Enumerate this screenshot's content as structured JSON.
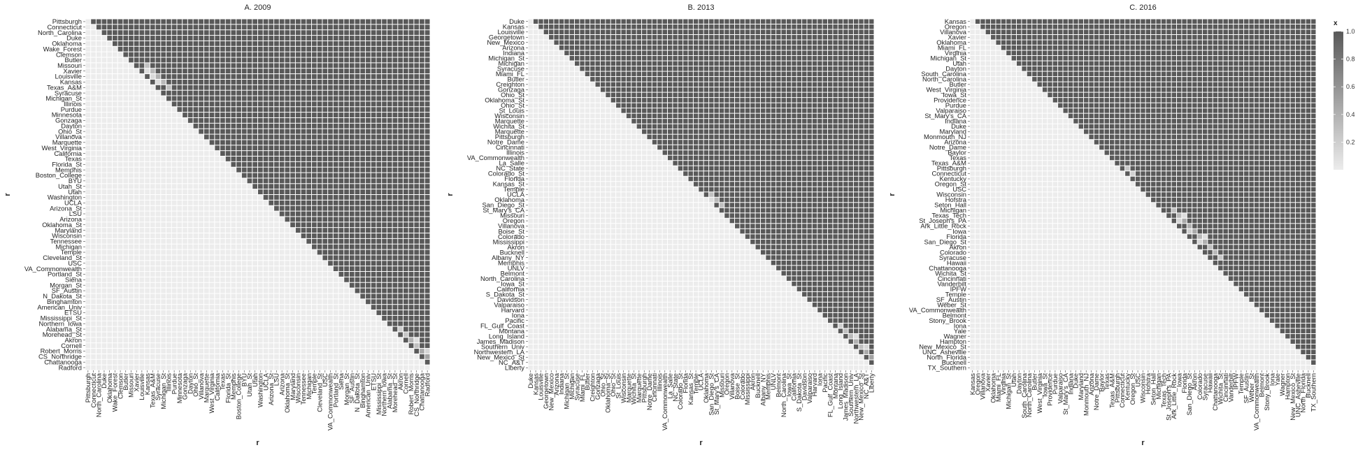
{
  "chart_data": [
    {
      "type": "heatmap",
      "title": "A. 2009",
      "xlabel": "r",
      "ylabel": "r",
      "categories": [
        "Pittsburgh",
        "Connecticut",
        "North_Carolina",
        "Duke",
        "Oklahoma",
        "Wake_Forest",
        "Clemson",
        "Butler",
        "Missouri",
        "Xavier",
        "Louisville",
        "Kansas",
        "Texas_A&M",
        "Syracuse",
        "Michigan_St",
        "Illinois",
        "Purdue",
        "Minnesota",
        "Gonzaga",
        "Dayton",
        "Ohio_St",
        "Villanova",
        "Marquette",
        "West_Virginia",
        "California",
        "Texas",
        "Florida_St",
        "Memphis",
        "Boston_College",
        "BYU",
        "Utah_St",
        "Utah",
        "Washington",
        "UCLA",
        "Arizona_St",
        "LSU",
        "Arizona",
        "Oklahoma_St",
        "Maryland",
        "Wisconsin",
        "Tennessee",
        "Michigan",
        "Temple",
        "Cleveland_St",
        "USC",
        "VA_Commonwealth",
        "Portland_St",
        "Siena",
        "Morgan_St",
        "SF_Austin",
        "N_Dakota_St",
        "Binghamton",
        "American_Univ",
        "ETSU",
        "Mississippi_St",
        "Northern_Iowa",
        "Alabama_St",
        "Morehead_St",
        "Akron",
        "Cornell",
        "Robert_Morris",
        "CS_Northridge",
        "Chattanooga",
        "Radford"
      ],
      "values_note": "lower triangle ~0, upper triangle ~1",
      "mid": [
        [
          8,
          11,
          0.3
        ],
        [
          9,
          12,
          0.35
        ],
        [
          10,
          13,
          0.4
        ],
        [
          11,
          14,
          0.35
        ],
        [
          12,
          15,
          0.3
        ],
        [
          9,
          11,
          0.1
        ],
        [
          10,
          12,
          0.12
        ],
        [
          11,
          13,
          0.1
        ],
        [
          56,
          58,
          0.2
        ],
        [
          57,
          59,
          0.25
        ],
        [
          58,
          60,
          0.4
        ],
        [
          59,
          61,
          0.3
        ],
        [
          60,
          62,
          0.45
        ],
        [
          61,
          63,
          0.5
        ],
        [
          58,
          61,
          0.1
        ],
        [
          60,
          63,
          0.15
        ]
      ]
    },
    {
      "type": "heatmap",
      "title": "B. 2013",
      "xlabel": "r",
      "ylabel": "r",
      "categories": [
        "Duke",
        "Kansas",
        "Louisville",
        "Georgetown",
        "New_Mexico",
        "Arizona",
        "Indiana",
        "Michigan_St",
        "Michigan",
        "Syracuse",
        "Miami_FL",
        "Butler",
        "Creighton",
        "Gonzaga",
        "Ohio_St",
        "Oklahoma_St",
        "Ohio_St",
        "St_Louis",
        "Wisconsin",
        "Marquette",
        "Wichita_St",
        "Marquette",
        "Pittsburgh",
        "Notre_Dame",
        "Cincinnati",
        "Illinois",
        "VA_Commonwealth",
        "La_Salle",
        "NC_State",
        "Colorado_St",
        "Florida",
        "Kansas_St",
        "Temple",
        "UCLA",
        "Oklahoma",
        "San_Diego_St",
        "St_Mary's_CA",
        "Missouri",
        "Oregon",
        "Villanova",
        "Boise_St",
        "Colorado",
        "Mississippi",
        "Akron",
        "Bucknell",
        "Albany_NY",
        "Memphis",
        "UNLV",
        "Belmont",
        "North_Carolina",
        "Iowa_St",
        "California",
        "S_Dakota_St",
        "Davidson",
        "Valparaiso",
        "Harvard",
        "Iona",
        "Pacific",
        "FL_Gulf_Coast",
        "Montana",
        "Long_Island",
        "James_Madison",
        "Southern_Univ",
        "Northwestern_LA",
        "New_Mexico_St",
        "NC_A&T",
        "Liberty"
      ],
      "values_note": "lower triangle ~0, upper triangle ~1",
      "mid": [
        [
          33,
          35,
          0.3
        ],
        [
          34,
          36,
          0.35
        ],
        [
          35,
          37,
          0.3
        ],
        [
          34,
          35,
          0.1
        ],
        [
          58,
          60,
          0.2
        ],
        [
          59,
          61,
          0.3
        ],
        [
          60,
          62,
          0.35
        ],
        [
          61,
          63,
          0.4
        ],
        [
          62,
          64,
          0.3
        ],
        [
          63,
          65,
          0.45
        ],
        [
          64,
          66,
          0.5
        ],
        [
          60,
          63,
          0.1
        ],
        [
          62,
          65,
          0.15
        ]
      ]
    },
    {
      "type": "heatmap",
      "title": "C. 2016",
      "xlabel": "r",
      "ylabel": "r",
      "categories": [
        "Kansas",
        "Oregon",
        "Villanova",
        "Xavier",
        "Oklahoma",
        "Miami_FL",
        "Virginia",
        "Michigan_St",
        "Utah",
        "Dayton",
        "South_Carolina",
        "North_Carolina",
        "Butler",
        "West_Virginia",
        "Iowa_St",
        "Providence",
        "Purdue",
        "Valparaiso",
        "St_Mary's_CA",
        "Indiana",
        "Duke",
        "Maryland",
        "Monmouth_NJ",
        "Arizona",
        "Notre_Dame",
        "Baylor",
        "Texas",
        "Texas_A&M",
        "Pittsburgh",
        "Connecticut",
        "Kentucky",
        "Oregon_St",
        "USC",
        "Wisconsin",
        "Hofstra",
        "Seton_Hall",
        "Michigan",
        "Texas_Tech",
        "St_Joseph's_PA",
        "Ark_Little_Rock",
        "Iowa",
        "Florida",
        "San_Diego_St",
        "Akron",
        "Colorado",
        "Syracuse",
        "Hawaii",
        "Chattanooga",
        "Wichita_St",
        "Cincinnati",
        "Vanderbilt",
        "IPFW",
        "Temple",
        "SF_Austin",
        "Weber_St",
        "VA_Commonwealth",
        "Belmont",
        "Stony_Brook",
        "Iona",
        "Yale",
        "Wagner",
        "Hampton",
        "New_Mexico_St",
        "UNC_Asheville",
        "North_Florida",
        "Bucknell",
        "TX_Southern"
      ],
      "values_note": "lower triangle ~0, upper triangle ~1",
      "mid": [
        [
          28,
          30,
          0.25
        ],
        [
          29,
          31,
          0.2
        ],
        [
          36,
          39,
          0.3
        ],
        [
          37,
          40,
          0.35
        ],
        [
          38,
          41,
          0.45
        ],
        [
          39,
          42,
          0.4
        ],
        [
          40,
          43,
          0.45
        ],
        [
          41,
          44,
          0.35
        ],
        [
          42,
          45,
          0.4
        ],
        [
          43,
          46,
          0.3
        ],
        [
          44,
          47,
          0.35
        ],
        [
          45,
          48,
          0.25
        ],
        [
          38,
          40,
          0.15
        ],
        [
          40,
          42,
          0.2
        ],
        [
          42,
          44,
          0.15
        ],
        [
          37,
          41,
          0.1
        ],
        [
          41,
          45,
          0.1
        ]
      ]
    }
  ],
  "legend": {
    "title": "x",
    "ticks": [
      "0.2",
      "0.4",
      "0.6",
      "0.8",
      "1.0"
    ],
    "tick_values": [
      0.2,
      0.4,
      0.6,
      0.8,
      1.0
    ],
    "color_low": "#ececec",
    "color_high": "#595959"
  }
}
